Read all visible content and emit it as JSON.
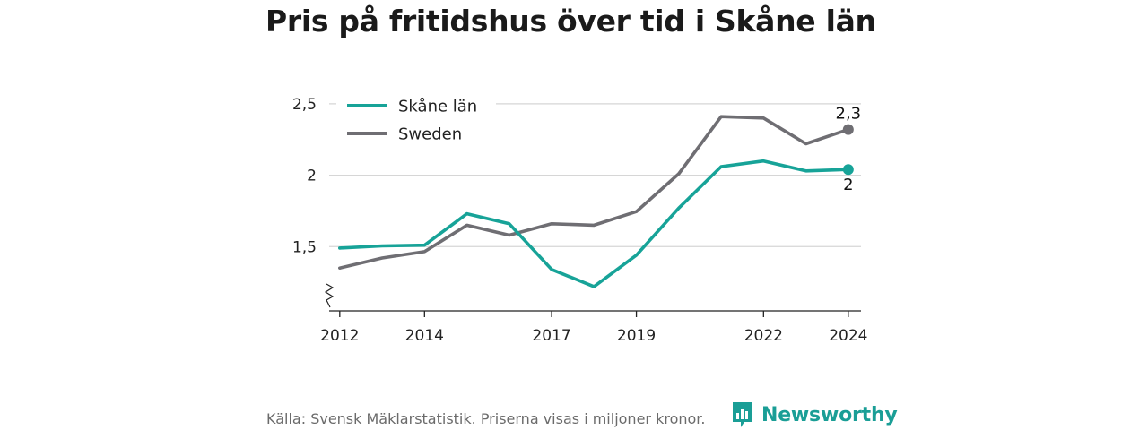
{
  "title": "Pris på fritidshus över tid i Skåne län",
  "source": "Källa: Svensk Mäklarstatistik. Priserna visas i miljoner kronor.",
  "brand": {
    "name": "Newsworthy",
    "icon": "newsworthy-logo-icon",
    "color": "#1a9e96"
  },
  "chart_data": {
    "type": "line",
    "title": "Pris på fritidshus över tid i Skåne län",
    "xlabel": "",
    "ylabel": "",
    "x": [
      2012,
      2013,
      2014,
      2015,
      2016,
      2017,
      2018,
      2019,
      2020,
      2021,
      2022,
      2023,
      2024
    ],
    "x_ticks": [
      2012,
      2014,
      2017,
      2019,
      2022,
      2024
    ],
    "x_tick_labels": [
      "2012",
      "2014",
      "2017",
      "2019",
      "2022",
      "2024"
    ],
    "y_ticks": [
      1.5,
      2,
      2.5
    ],
    "y_tick_labels": [
      "1,5",
      "2",
      "2,5"
    ],
    "ylim": [
      1.05,
      2.65
    ],
    "xlim": [
      2011.75,
      2024.3
    ],
    "grid": true,
    "legend_position": "top-left",
    "series": [
      {
        "name": "Skåne län",
        "color": "#17a398",
        "values": [
          1.49,
          1.505,
          1.51,
          1.73,
          1.66,
          1.34,
          1.22,
          1.44,
          1.77,
          2.06,
          2.1,
          2.03,
          2.04
        ],
        "end_label": "2"
      },
      {
        "name": "Sweden",
        "color": "#6f6e73",
        "values": [
          1.35,
          1.42,
          1.465,
          1.65,
          1.58,
          1.66,
          1.65,
          1.745,
          2.01,
          2.41,
          2.4,
          2.22,
          2.32
        ],
        "end_label": "2,3"
      }
    ]
  }
}
